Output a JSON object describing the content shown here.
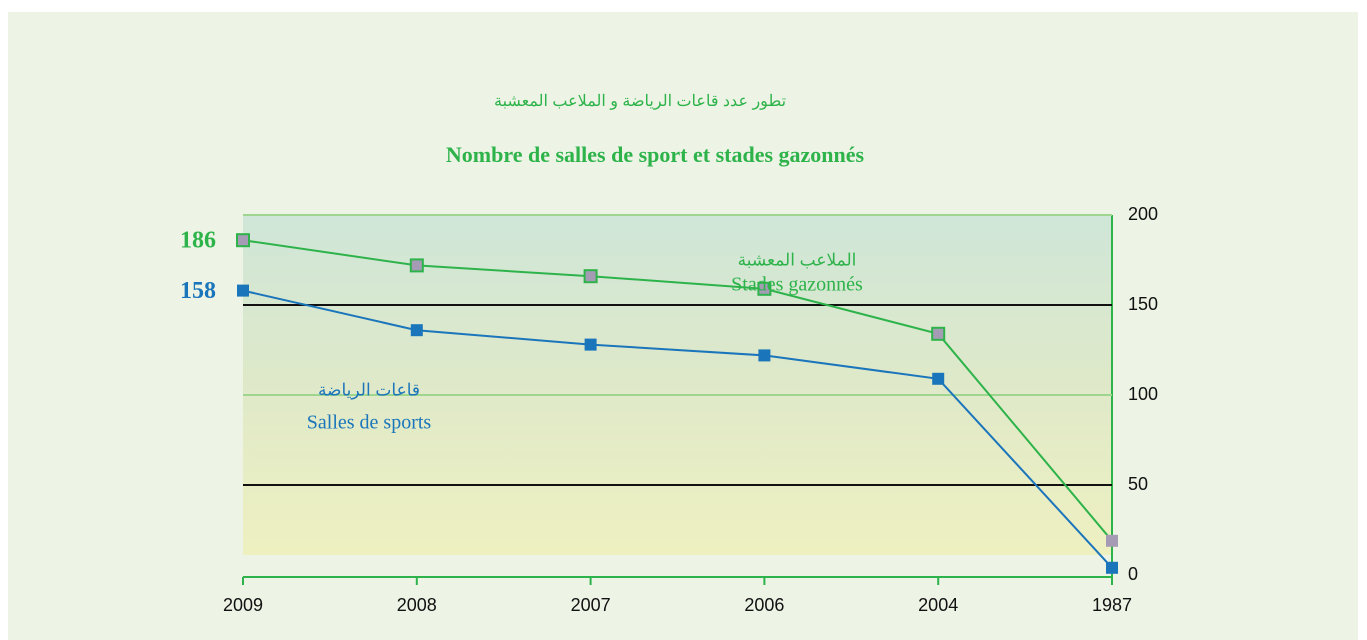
{
  "chart_data": {
    "type": "line",
    "subtitle": "تطور عدد قاعات الرياضة و الملاعب المعشبة",
    "title": "Nombre de salles de sport et stades gazonnés",
    "categories": [
      "2009",
      "2008",
      "2007",
      "2006",
      "2004",
      "1987"
    ],
    "series": [
      {
        "name": "Stades gazonnés",
        "name_ar": "الملاعب المعشبة",
        "color": "#2db34a",
        "marker_fill": "#a69bb5",
        "values": [
          186,
          172,
          166,
          159,
          134,
          19
        ]
      },
      {
        "name": "Salles de sports",
        "name_ar": "قاعات الرياضة",
        "color": "#1b75bb",
        "marker_fill": "#1b75bb",
        "values": [
          158,
          136,
          128,
          122,
          109,
          4
        ]
      }
    ],
    "ylim": [
      0,
      200
    ],
    "yticks": [
      0,
      50,
      100,
      150,
      200
    ],
    "grid": true
  }
}
